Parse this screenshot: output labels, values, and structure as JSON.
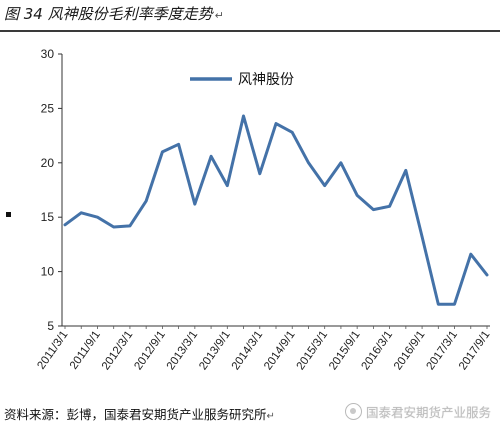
{
  "header": {
    "title": "图 34 风神股份毛利率季度走势",
    "return_mark": "↵"
  },
  "footer": {
    "source": "资料来源：彭博，国泰君安期货产业服务研究所",
    "return_mark": "↵",
    "watermark": "国泰君安期货产业服务"
  },
  "chart_data": {
    "type": "line",
    "title": "",
    "xlabel": "",
    "ylabel": "",
    "ylim": [
      5,
      30
    ],
    "yticks": [
      5,
      10,
      15,
      20,
      25,
      30
    ],
    "grid": false,
    "legend": "top-left, inside plot",
    "x": [
      "2011/3/1",
      "2011/6/1",
      "2011/9/1",
      "2011/12/1",
      "2012/3/1",
      "2012/6/1",
      "2012/9/1",
      "2012/12/1",
      "2013/3/1",
      "2013/6/1",
      "2013/9/1",
      "2013/12/1",
      "2014/3/1",
      "2014/6/1",
      "2014/9/1",
      "2014/12/1",
      "2015/3/1",
      "2015/6/1",
      "2015/9/1",
      "2015/12/1",
      "2016/3/1",
      "2016/6/1",
      "2016/9/1",
      "2016/12/1",
      "2017/3/1",
      "2017/6/1",
      "2017/9/1"
    ],
    "x_tick_labels": [
      "2011/3/1",
      "2011/9/1",
      "2012/3/1",
      "2012/9/1",
      "2013/3/1",
      "2013/9/1",
      "2014/3/1",
      "2014/9/1",
      "2015/3/1",
      "2015/9/1",
      "2016/3/1",
      "2016/9/1",
      "2017/3/1",
      "2017/9/1"
    ],
    "series": [
      {
        "name": "风神股份",
        "color": "#4472a8",
        "values": [
          14.3,
          15.4,
          15.0,
          14.1,
          14.2,
          16.5,
          21.0,
          21.7,
          16.2,
          20.6,
          17.9,
          24.3,
          19.0,
          23.6,
          22.8,
          20.0,
          17.9,
          20.0,
          17.0,
          15.7,
          16.0,
          19.3,
          13.2,
          7.0,
          7.0,
          11.6,
          9.7
        ]
      }
    ]
  }
}
